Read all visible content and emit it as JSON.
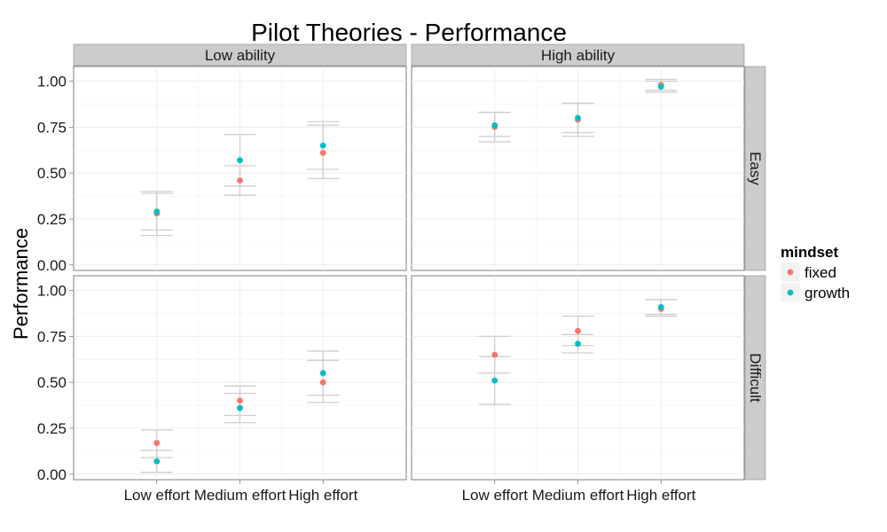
{
  "chart_data": {
    "type": "scatter",
    "title": "Pilot Theories - Performance",
    "xlabel": "",
    "ylabel": "Performance",
    "ylim": [
      -0.03,
      1.08
    ],
    "y_ticks": [
      0.0,
      0.25,
      0.5,
      0.75,
      1.0
    ],
    "y_tick_labels": [
      "0.00",
      "0.25",
      "0.50",
      "0.75",
      "1.00"
    ],
    "categories": [
      "Low effort",
      "Medium effort",
      "High effort"
    ],
    "column_facets": [
      "Low ability",
      "High ability"
    ],
    "row_facets": [
      "Easy",
      "Difficult"
    ],
    "grid": true,
    "legend": {
      "title": "mindset",
      "position": "right",
      "entries": [
        {
          "name": "fixed",
          "color": "#F8766D"
        },
        {
          "name": "growth",
          "color": "#00BFC4"
        }
      ]
    },
    "panels": [
      {
        "row": "Easy",
        "col": "Low ability",
        "series": [
          {
            "name": "fixed",
            "values": [
              0.28,
              0.46,
              0.61
            ],
            "lower": [
              0.16,
              0.38,
              0.47
            ],
            "upper": [
              0.39,
              0.54,
              0.76
            ]
          },
          {
            "name": "growth",
            "values": [
              0.29,
              0.57,
              0.65
            ],
            "lower": [
              0.19,
              0.43,
              0.52
            ],
            "upper": [
              0.4,
              0.71,
              0.78
            ]
          }
        ]
      },
      {
        "row": "Easy",
        "col": "High ability",
        "series": [
          {
            "name": "fixed",
            "values": [
              0.75,
              0.79,
              0.98
            ],
            "lower": [
              0.67,
              0.7,
              0.95
            ],
            "upper": [
              0.83,
              0.88,
              1.01
            ]
          },
          {
            "name": "growth",
            "values": [
              0.76,
              0.8,
              0.97
            ],
            "lower": [
              0.7,
              0.72,
              0.94
            ],
            "upper": [
              0.83,
              0.88,
              1.0
            ]
          }
        ]
      },
      {
        "row": "Difficult",
        "col": "Low ability",
        "series": [
          {
            "name": "fixed",
            "values": [
              0.17,
              0.4,
              0.5
            ],
            "lower": [
              0.09,
              0.32,
              0.39
            ],
            "upper": [
              0.24,
              0.48,
              0.62
            ]
          },
          {
            "name": "growth",
            "values": [
              0.07,
              0.36,
              0.55
            ],
            "lower": [
              0.01,
              0.28,
              0.43
            ],
            "upper": [
              0.13,
              0.44,
              0.67
            ]
          }
        ]
      },
      {
        "row": "Difficult",
        "col": "High ability",
        "series": [
          {
            "name": "fixed",
            "values": [
              0.65,
              0.78,
              0.9
            ],
            "lower": [
              0.55,
              0.7,
              0.86
            ],
            "upper": [
              0.75,
              0.86,
              0.95
            ]
          },
          {
            "name": "growth",
            "values": [
              0.51,
              0.71,
              0.91
            ],
            "lower": [
              0.38,
              0.66,
              0.87
            ],
            "upper": [
              0.64,
              0.76,
              0.95
            ]
          }
        ]
      }
    ]
  }
}
